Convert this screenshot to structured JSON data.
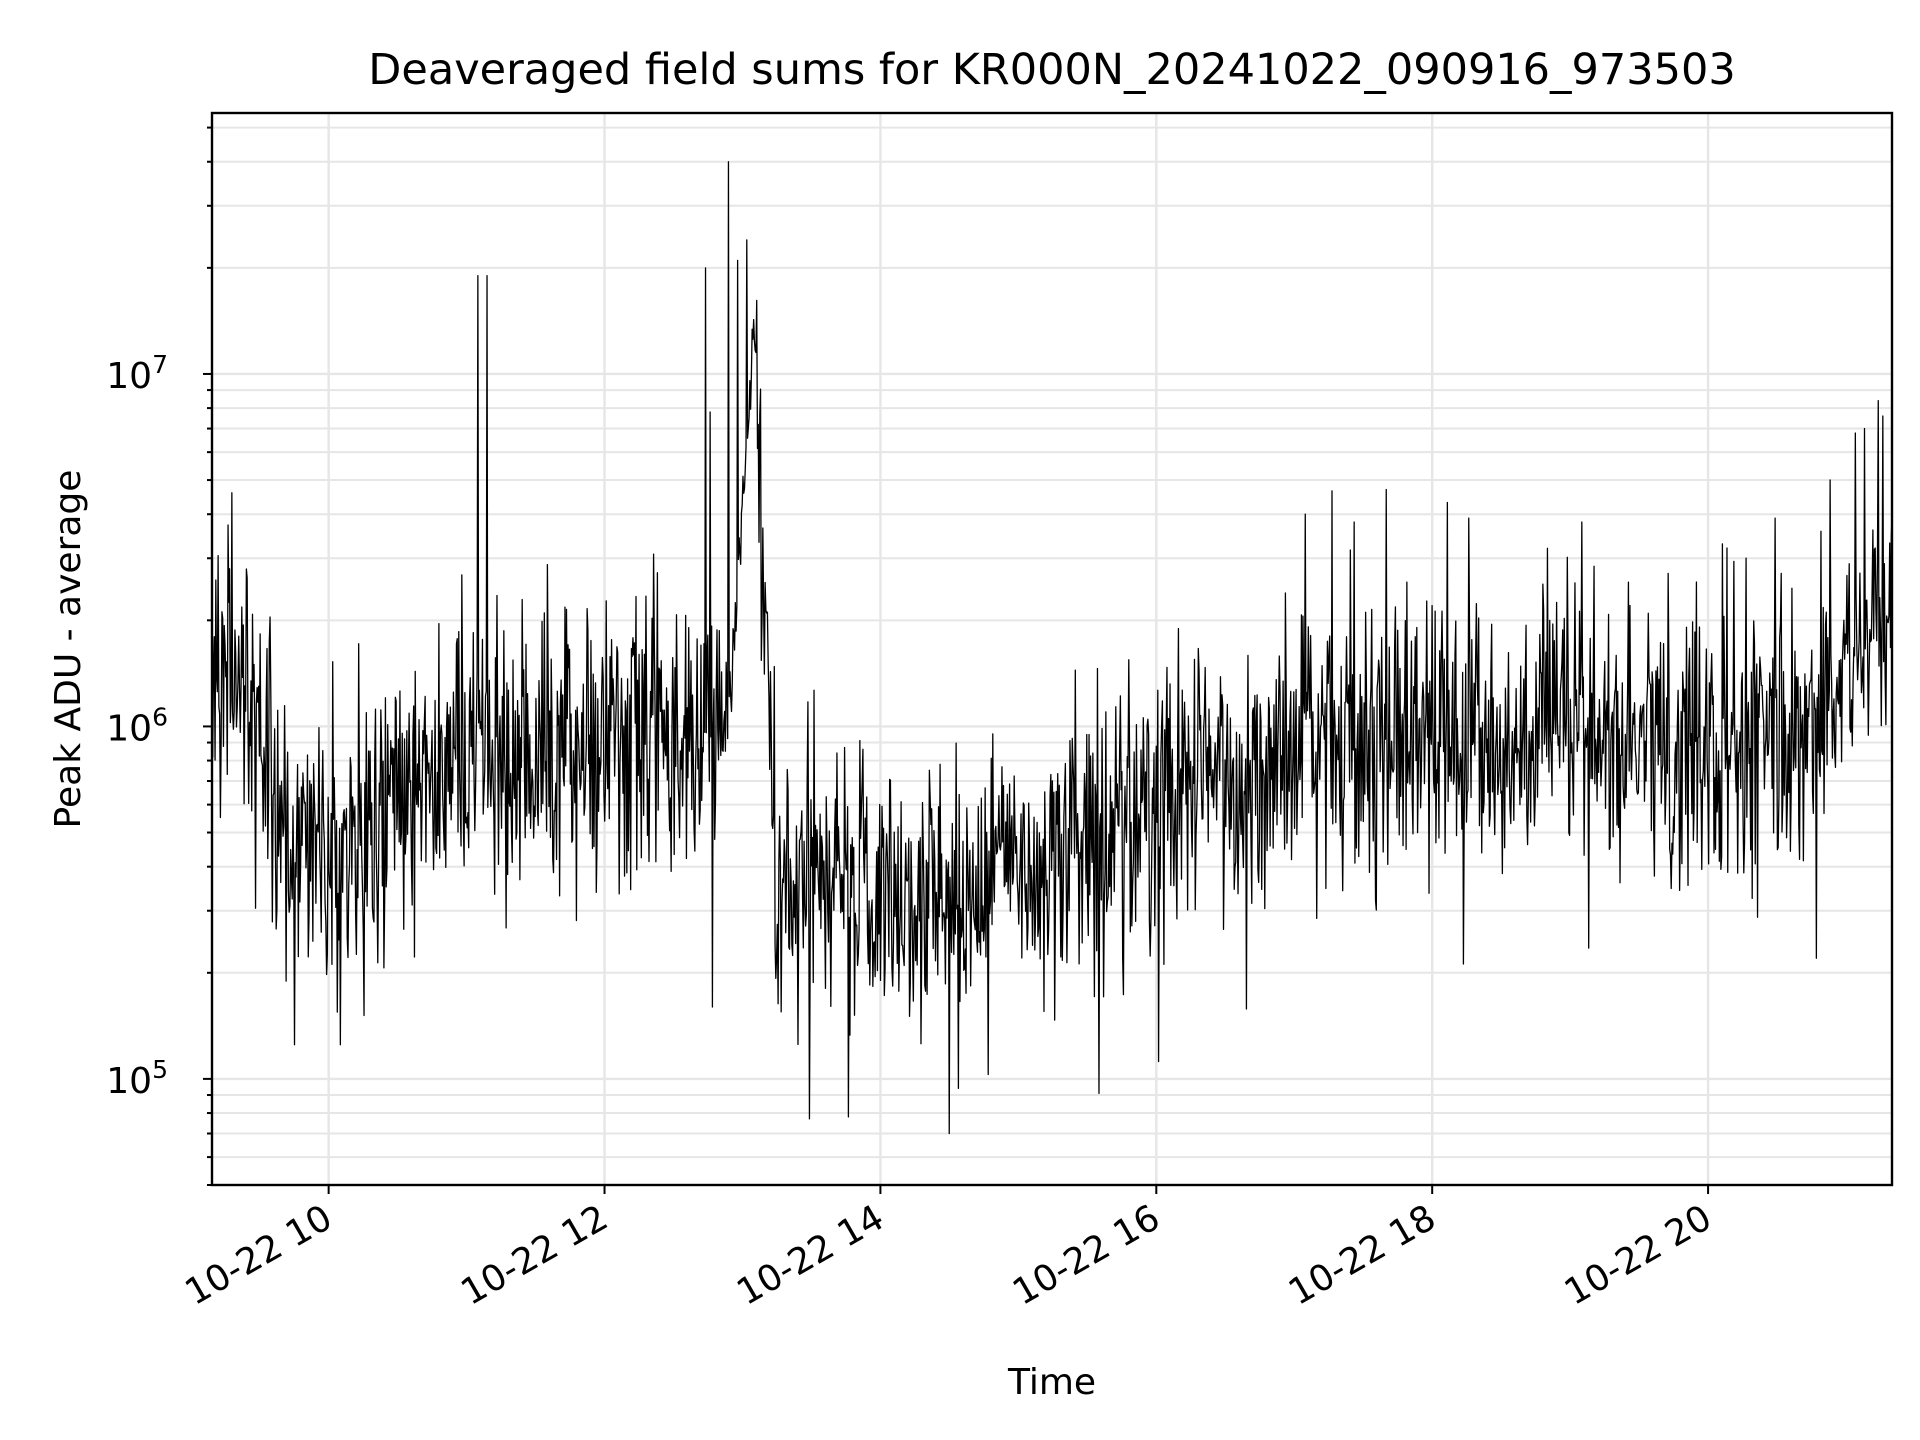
{
  "chart_data": {
    "type": "line",
    "title": "Deaveraged field sums for KR000N_20241022_090916_973503",
    "xlabel": "Time",
    "ylabel": "Peak ADU - average",
    "x_axis": {
      "kind": "time",
      "start": "2024-10-22T09:09:16",
      "end": "2024-10-22T21:20:00"
    },
    "y_axis": {
      "scale": "log",
      "ylim": [
        50000,
        55000000
      ]
    },
    "x_ticks": [
      {
        "time": "2024-10-22T10:00",
        "label": "10-22 10"
      },
      {
        "time": "2024-10-22T12:00",
        "label": "10-22 12"
      },
      {
        "time": "2024-10-22T14:00",
        "label": "10-22 14"
      },
      {
        "time": "2024-10-22T16:00",
        "label": "10-22 16"
      },
      {
        "time": "2024-10-22T18:00",
        "label": "10-22 18"
      },
      {
        "time": "2024-10-22T20:00",
        "label": "10-22 20"
      }
    ],
    "y_ticks": [
      {
        "value": 100000,
        "base": "10",
        "exp": "5"
      },
      {
        "value": 1000000,
        "base": "10",
        "exp": "6"
      },
      {
        "value": 10000000,
        "base": "10",
        "exp": "7"
      }
    ],
    "grid": true,
    "line_color": "#000000",
    "grid_color": "#e6e6e6",
    "series": [
      {
        "profile_times": [
          "09:09",
          "09:15",
          "09:22",
          "09:30",
          "09:40",
          "09:50",
          "10:00",
          "10:10",
          "10:20",
          "10:30",
          "10:45",
          "11:00",
          "11:15",
          "11:30",
          "11:45",
          "12:00",
          "12:15",
          "12:30",
          "12:45",
          "12:55",
          "13:05",
          "13:15",
          "13:30",
          "13:45",
          "14:00",
          "14:15",
          "14:30",
          "14:45",
          "15:00",
          "15:15",
          "15:30",
          "15:45",
          "16:00",
          "16:15",
          "16:30",
          "16:45",
          "17:00",
          "17:15",
          "17:30",
          "17:45",
          "18:00",
          "18:15",
          "18:30",
          "18:45",
          "19:00",
          "19:15",
          "19:30",
          "19:45",
          "20:00",
          "20:15",
          "20:30",
          "20:45",
          "21:00",
          "21:10",
          "21:20"
        ],
        "profile_median": [
          1600000,
          1500000,
          1300000,
          800000,
          500000,
          450000,
          480000,
          450000,
          500000,
          600000,
          750000,
          850000,
          850000,
          850000,
          850000,
          900000,
          900000,
          900000,
          900000,
          1200000,
          14000000,
          300000,
          350000,
          350000,
          350000,
          330000,
          330000,
          360000,
          400000,
          450000,
          500000,
          550000,
          600000,
          650000,
          700000,
          750000,
          850000,
          1000000,
          1000000,
          950000,
          900000,
          900000,
          900000,
          900000,
          950000,
          1000000,
          900000,
          850000,
          850000,
          950000,
          900000,
          1000000,
          1400000,
          1800000,
          2100000
        ],
        "spikes": [
          {
            "time": "09:18",
            "value": 4600000
          },
          {
            "time": "11:05",
            "value": 19000000
          },
          {
            "time": "11:09",
            "value": 19000000
          },
          {
            "time": "12:44",
            "value": 20000000
          },
          {
            "time": "12:46",
            "value": 7800000
          },
          {
            "time": "12:54",
            "value": 40000000
          },
          {
            "time": "12:58",
            "value": 21000000
          },
          {
            "time": "13:02",
            "value": 24000000
          },
          {
            "time": "17:26",
            "value": 3800000
          },
          {
            "time": "17:40",
            "value": 4700000
          },
          {
            "time": "18:16",
            "value": 3900000
          },
          {
            "time": "19:05",
            "value": 3800000
          },
          {
            "time": "20:29",
            "value": 3900000
          },
          {
            "time": "20:53",
            "value": 5000000
          },
          {
            "time": "21:04",
            "value": 6800000
          },
          {
            "time": "21:08",
            "value": 7000000
          },
          {
            "time": "21:14",
            "value": 8400000
          },
          {
            "time": "21:16",
            "value": 7600000
          }
        ],
        "dips": [
          {
            "time": "09:45",
            "value": 125000
          },
          {
            "time": "10:05",
            "value": 125000
          },
          {
            "time": "12:47",
            "value": 160000
          },
          {
            "time": "13:29",
            "value": 77000
          },
          {
            "time": "13:46",
            "value": 78000
          },
          {
            "time": "14:30",
            "value": 70000
          },
          {
            "time": "15:35",
            "value": 91000
          },
          {
            "time": "16:01",
            "value": 112000
          },
          {
            "time": "19:08",
            "value": 235000
          },
          {
            "time": "20:47",
            "value": 220000
          }
        ]
      }
    ]
  }
}
